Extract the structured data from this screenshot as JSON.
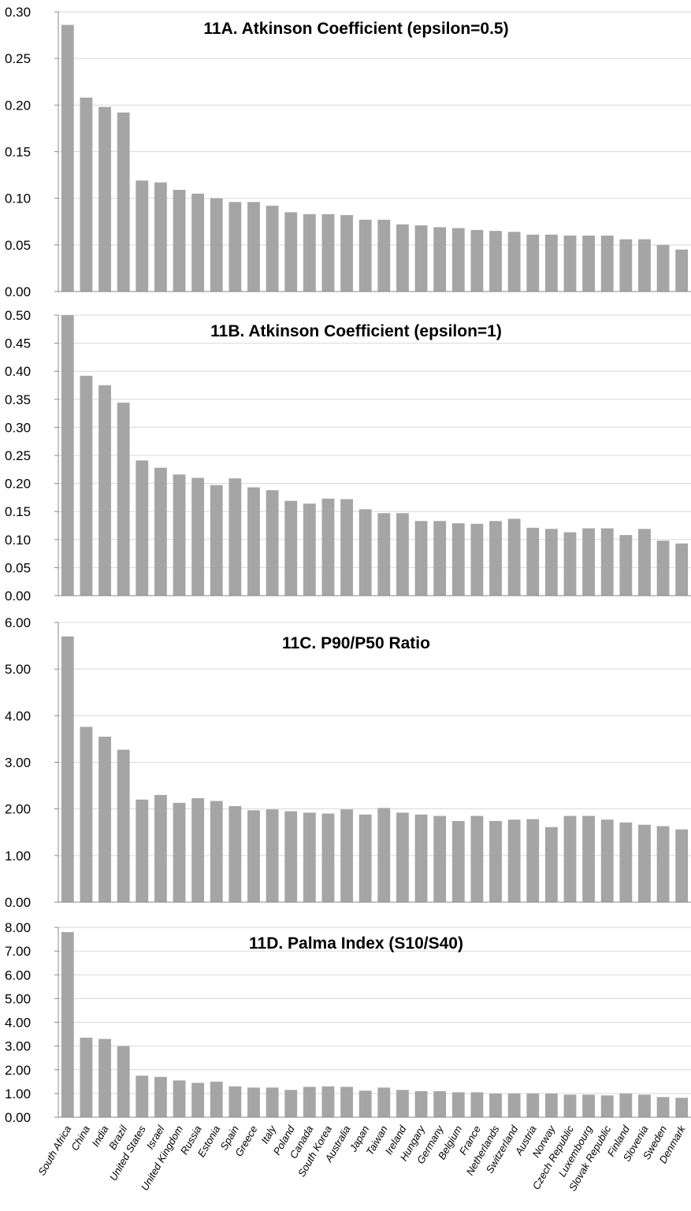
{
  "categories": [
    "South Africa",
    "China",
    "India",
    "Brazil",
    "United States",
    "Israel",
    "United Kingdom",
    "Russia",
    "Estonia",
    "Spain",
    "Greece",
    "Italy",
    "Poland",
    "Canada",
    "South Korea",
    "Australia",
    "Japan",
    "Taiwan",
    "Ireland",
    "Hungary",
    "Germany",
    "Belgium",
    "France",
    "Netherlands",
    "Switzerland",
    "Austria",
    "Norway",
    "Czech Republic",
    "Luxembourg",
    "Slovak Republic",
    "Finland",
    "Slovenia",
    "Sweden",
    "Denmark"
  ],
  "colors": {
    "bar": "#a5a5a5",
    "grid": "#d9d9d9",
    "axis": "#888888"
  },
  "chart_data": [
    {
      "type": "bar",
      "title": "11A. Atkinson Coefficient (epsilon=0.5)",
      "ylim": [
        0,
        0.3
      ],
      "yticks": [
        "0.00",
        "0.05",
        "0.10",
        "0.15",
        "0.20",
        "0.25",
        "0.30"
      ],
      "values": [
        0.286,
        0.208,
        0.198,
        0.192,
        0.119,
        0.117,
        0.109,
        0.105,
        0.1,
        0.096,
        0.096,
        0.092,
        0.085,
        0.083,
        0.083,
        0.082,
        0.077,
        0.077,
        0.072,
        0.071,
        0.069,
        0.068,
        0.066,
        0.065,
        0.064,
        0.061,
        0.061,
        0.06,
        0.06,
        0.06,
        0.056,
        0.056,
        0.05,
        0.045
      ],
      "grid": true
    },
    {
      "type": "bar",
      "title": "11B. Atkinson Coefficient (epsilon=1)",
      "ylim": [
        0,
        0.5
      ],
      "yticks": [
        "0.00",
        "0.05",
        "0.10",
        "0.15",
        "0.20",
        "0.25",
        "0.30",
        "0.35",
        "0.40",
        "0.45",
        "0.50"
      ],
      "values": [
        0.5,
        0.392,
        0.375,
        0.344,
        0.241,
        0.228,
        0.216,
        0.21,
        0.197,
        0.209,
        0.193,
        0.188,
        0.169,
        0.164,
        0.173,
        0.172,
        0.154,
        0.147,
        0.147,
        0.133,
        0.133,
        0.129,
        0.128,
        0.133,
        0.137,
        0.121,
        0.119,
        0.113,
        0.12,
        0.12,
        0.108,
        0.119,
        0.098,
        0.093
      ],
      "grid": true
    },
    {
      "type": "bar",
      "title": "11C. P90/P50 Ratio",
      "ylim": [
        0,
        6.0
      ],
      "yticks": [
        "0.00",
        "1.00",
        "2.00",
        "3.00",
        "4.00",
        "5.00",
        "6.00"
      ],
      "values": [
        5.7,
        3.76,
        3.55,
        3.27,
        2.2,
        2.3,
        2.13,
        2.23,
        2.17,
        2.06,
        1.97,
        1.99,
        1.95,
        1.92,
        1.9,
        1.99,
        1.88,
        2.02,
        1.92,
        1.88,
        1.85,
        1.74,
        1.85,
        1.74,
        1.77,
        1.78,
        1.61,
        1.85,
        1.85,
        1.77,
        1.71,
        1.66,
        1.63,
        1.56
      ],
      "grid": true
    },
    {
      "type": "bar",
      "title": "11D. Palma Index (S10/S40)",
      "ylim": [
        0,
        8.0
      ],
      "yticks": [
        "0.00",
        "1.00",
        "2.00",
        "3.00",
        "4.00",
        "5.00",
        "6.00",
        "7.00",
        "8.00"
      ],
      "values": [
        7.8,
        3.35,
        3.3,
        3.0,
        1.75,
        1.7,
        1.55,
        1.45,
        1.5,
        1.3,
        1.25,
        1.25,
        1.15,
        1.28,
        1.3,
        1.28,
        1.12,
        1.25,
        1.15,
        1.1,
        1.1,
        1.05,
        1.05,
        1.0,
        1.0,
        1.0,
        1.0,
        0.95,
        0.95,
        0.92,
        1.0,
        0.95,
        0.85,
        0.82
      ],
      "grid": true
    }
  ]
}
